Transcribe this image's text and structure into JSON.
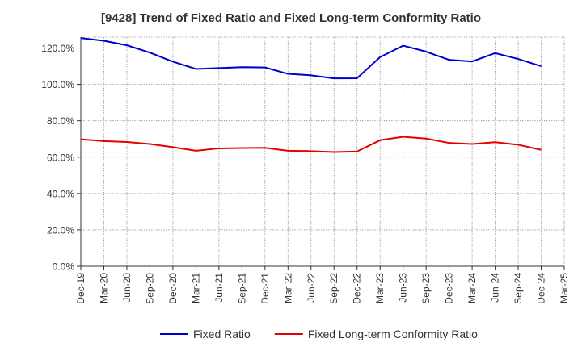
{
  "chart_data": {
    "type": "line",
    "title": "[9428]  Trend of Fixed Ratio and Fixed Long-term Conformity Ratio",
    "xlabel": "",
    "ylabel": "",
    "categories": [
      "Dec-19",
      "Mar-20",
      "Jun-20",
      "Sep-20",
      "Dec-20",
      "Mar-21",
      "Jun-21",
      "Sep-21",
      "Dec-21",
      "Mar-22",
      "Jun-22",
      "Sep-22",
      "Dec-22",
      "Mar-23",
      "Jun-23",
      "Sep-23",
      "Dec-23",
      "Mar-24",
      "Jun-24",
      "Sep-24",
      "Dec-24",
      "Mar-25"
    ],
    "ylim": [
      0,
      126
    ],
    "yticks": [
      0,
      20,
      40,
      60,
      80,
      100,
      120
    ],
    "ytick_labels": [
      "0.0%",
      "20.0%",
      "40.0%",
      "60.0%",
      "80.0%",
      "100.0%",
      "120.0%"
    ],
    "grid": true,
    "legend_position": "bottom",
    "series": [
      {
        "name": "Fixed Ratio",
        "color": "#0000cc",
        "values": [
          125.5,
          124.0,
          121.5,
          117.5,
          112.5,
          108.5,
          109.0,
          109.5,
          109.3,
          105.8,
          105.0,
          103.3,
          103.4,
          115.0,
          121.3,
          118.0,
          113.5,
          112.6,
          117.2,
          114.0,
          110.0,
          null
        ]
      },
      {
        "name": "Fixed Long-term Conformity Ratio",
        "color": "#e60000",
        "values": [
          69.8,
          68.8,
          68.3,
          67.2,
          65.5,
          63.5,
          64.8,
          65.0,
          65.1,
          63.5,
          63.3,
          62.8,
          63.1,
          69.3,
          71.2,
          70.2,
          67.8,
          67.2,
          68.2,
          66.8,
          64.0,
          null
        ]
      }
    ]
  }
}
